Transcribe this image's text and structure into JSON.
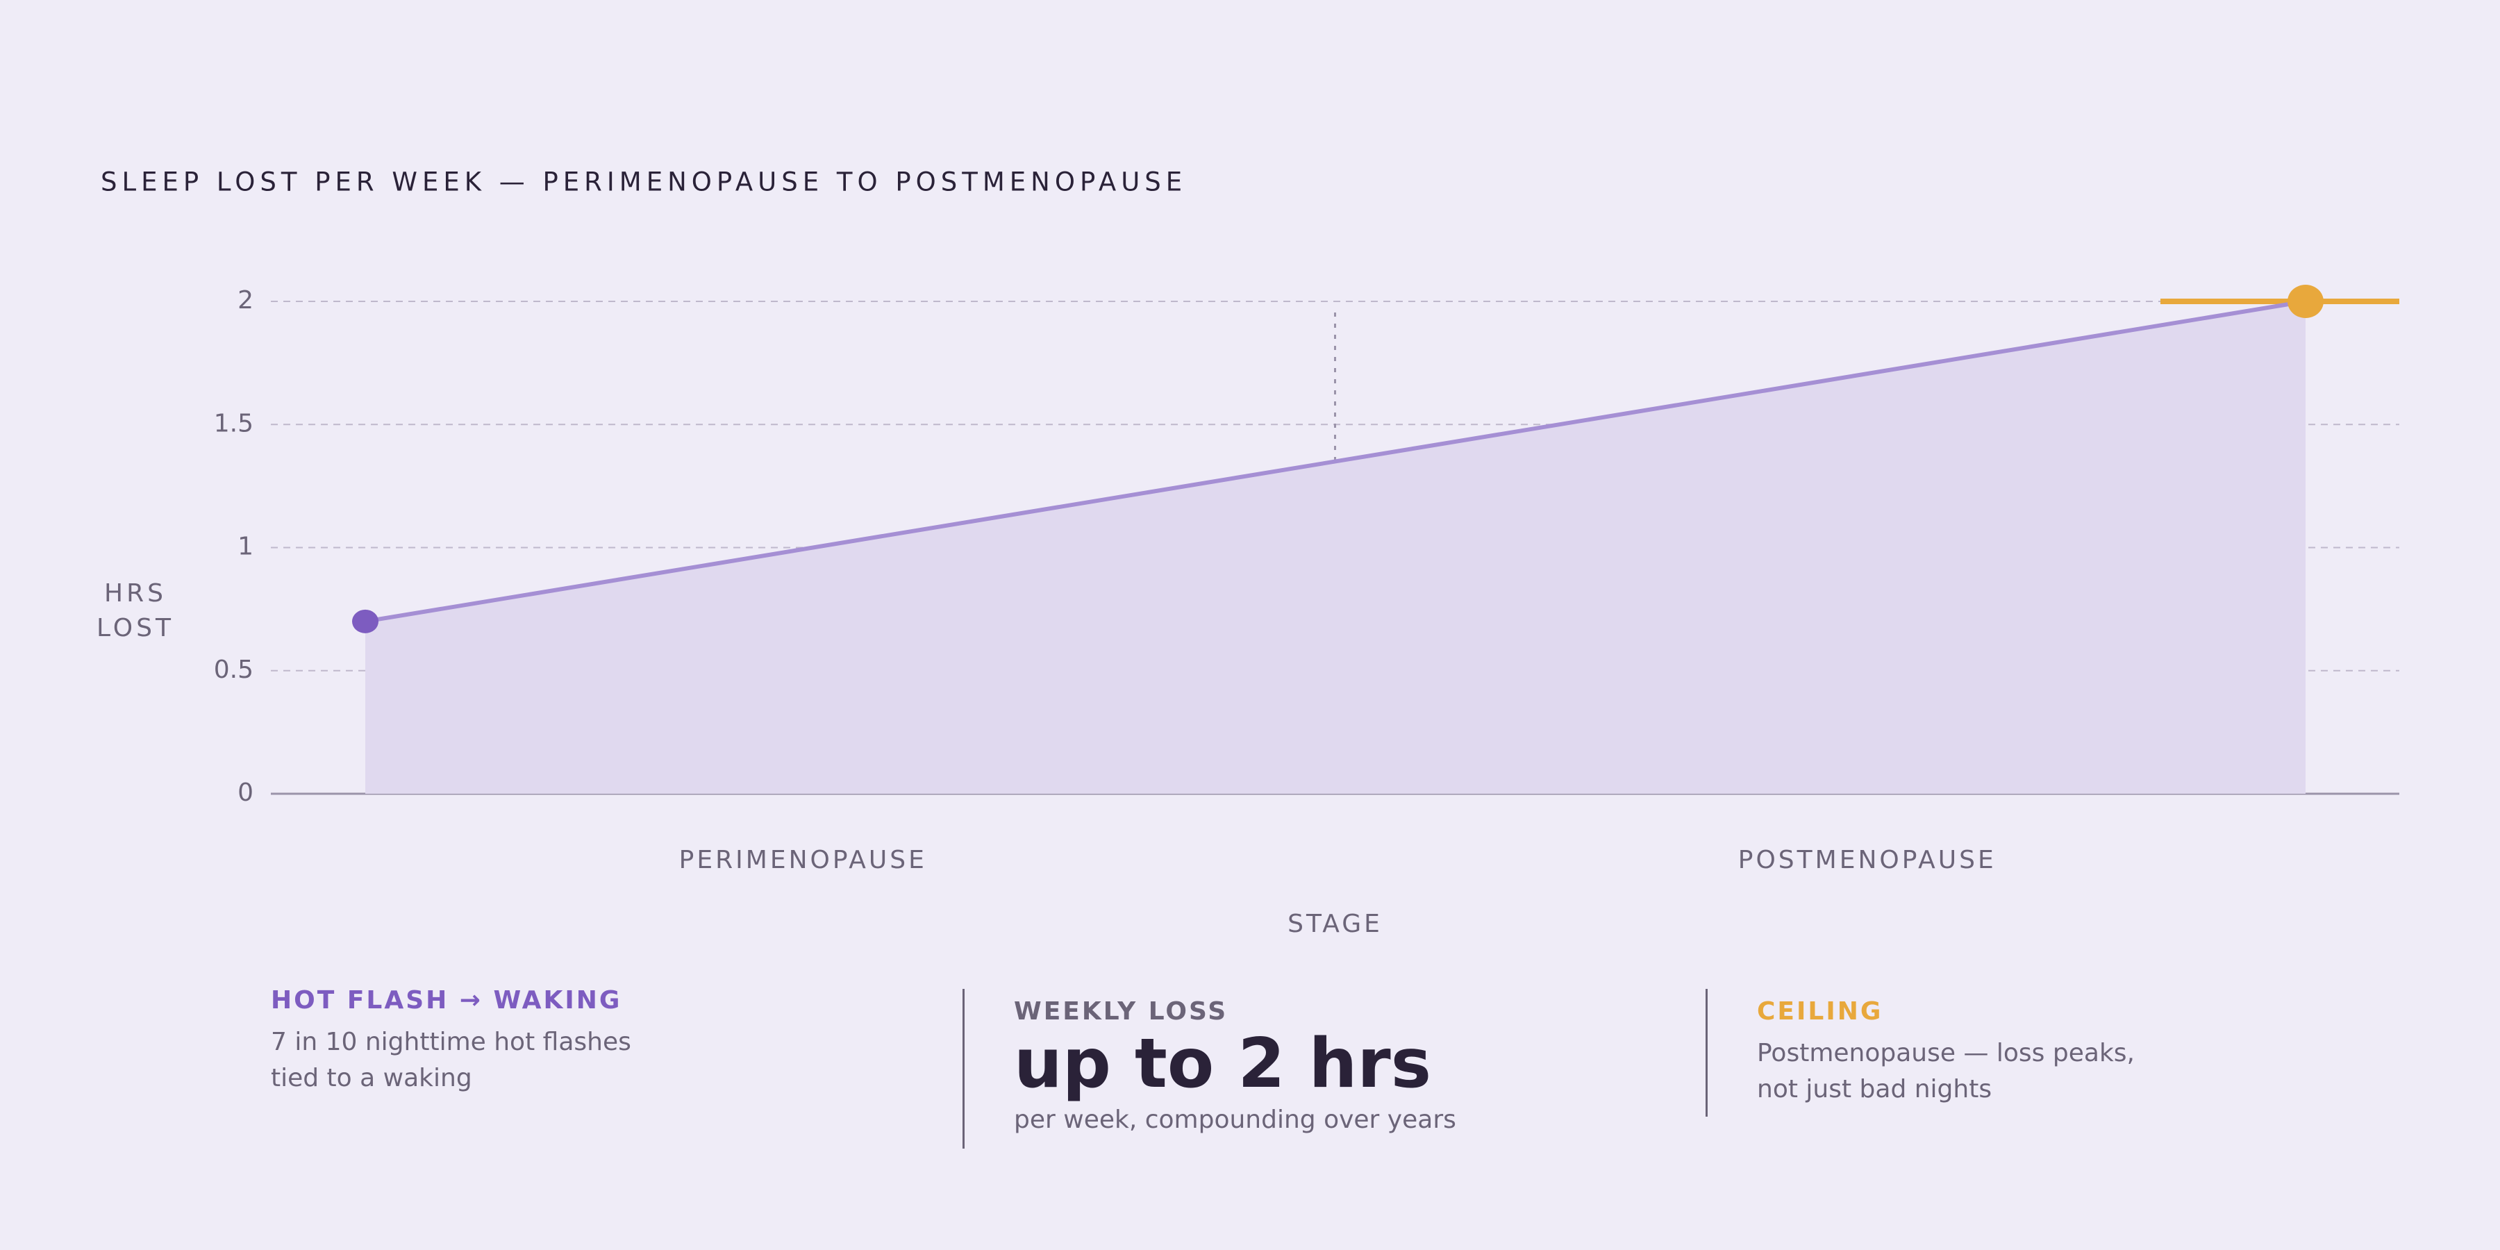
{
  "chart_data": {
    "type": "line",
    "title": "SLEEP LOST PER WEEK — PERIMENOPAUSE TO POSTMENOPAUSE",
    "y_label": [
      "HRS",
      "LOST"
    ],
    "x_label": "STAGE",
    "categories": [
      "PERIMENOPAUSE",
      "POSTMENOPAUSE"
    ],
    "values": [
      0.7,
      2
    ],
    "color": "#a58fd4",
    "area_color": "#e0d9ef",
    "point_colors": [
      "#7d5cc0",
      "#e8a83c"
    ],
    "ylim": [
      0,
      2
    ],
    "yticks": [
      0,
      0.5,
      1,
      1.5,
      2
    ],
    "grid": true
  },
  "panels": [
    {
      "heading": "HOT FLASH → WAKING",
      "lines": [
        "7 in 10 nighttime hot flashes",
        "tied to a waking"
      ]
    },
    {
      "heading": "WEEKLY LOSS",
      "headline": "up to 2 hrs",
      "lines": [
        "per week, compounding over years"
      ]
    },
    {
      "heading": "CEILING",
      "lines": [
        "Postmenopause — loss peaks,",
        "not just bad nights"
      ]
    }
  ]
}
